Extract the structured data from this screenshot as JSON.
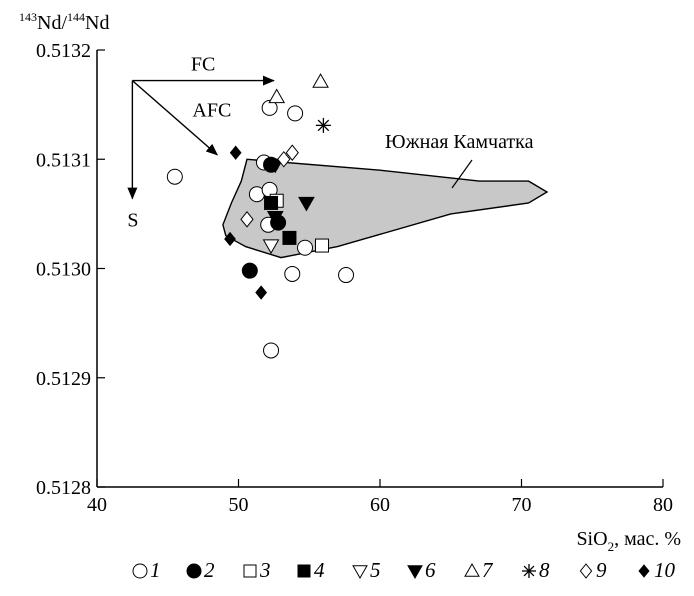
{
  "chart_data": {
    "type": "scatter",
    "ylabel_prefix_a": "143",
    "ylabel_nd_a": "Nd/",
    "ylabel_prefix_b": "144",
    "ylabel_nd_b": "Nd",
    "xlabel_main": "SiO",
    "xlabel_sub": "2",
    "xlabel_unit": ", мас. %",
    "xlim": [
      40,
      80
    ],
    "ylim": [
      0.5128,
      0.5132
    ],
    "x_ticks": [
      "40",
      "50",
      "60",
      "70",
      "80"
    ],
    "x_tick_values": [
      40,
      50,
      60,
      70,
      80
    ],
    "y_ticks": [
      "0.5128",
      "0.5129",
      "0.5130",
      "0.5131",
      "0.5132"
    ],
    "y_tick_values": [
      0.5128,
      0.5129,
      0.513,
      0.5131,
      0.5132
    ],
    "grid": false,
    "legend_position": "bottom",
    "region": {
      "label": "Южная Камчатка",
      "fill": "#c8c8c8",
      "outline": [
        [
          50.6,
          0.5131
        ],
        [
          60.0,
          0.51309
        ],
        [
          67.0,
          0.51308
        ],
        [
          70.5,
          0.51308
        ],
        [
          71.8,
          0.51307
        ],
        [
          70.5,
          0.51306
        ],
        [
          65.0,
          0.51305
        ],
        [
          57.0,
          0.51302
        ],
        [
          53.0,
          0.51301
        ],
        [
          50.5,
          0.51302
        ],
        [
          49.1,
          0.51303
        ],
        [
          48.9,
          0.51304
        ],
        [
          49.5,
          0.51306
        ],
        [
          50.2,
          0.51308
        ]
      ]
    },
    "vectors": [
      {
        "label": "FC",
        "from": [
          42.5,
          0.513172
        ],
        "to": [
          52.5,
          0.513172
        ]
      },
      {
        "label": "S",
        "from": [
          42.5,
          0.513172
        ],
        "to": [
          42.5,
          0.513064
        ]
      },
      {
        "label": "AFC",
        "from": [
          42.5,
          0.513172
        ],
        "to": [
          48.5,
          0.513104
        ]
      }
    ],
    "series": [
      {
        "name": "1",
        "marker": "circle-open",
        "points": [
          [
            45.5,
            0.513084
          ],
          [
            51.3,
            0.513068
          ],
          [
            51.8,
            0.513097
          ],
          [
            52.2,
            0.513072
          ],
          [
            52.1,
            0.51304
          ],
          [
            53.8,
            0.512995
          ],
          [
            54.7,
            0.513019
          ],
          [
            57.6,
            0.512994
          ],
          [
            52.3,
            0.512925
          ],
          [
            52.2,
            0.513147
          ],
          [
            54.0,
            0.513142
          ]
        ]
      },
      {
        "name": "2",
        "marker": "circle-filled",
        "points": [
          [
            50.8,
            0.512998
          ],
          [
            52.8,
            0.513042
          ],
          [
            52.3,
            0.513095
          ]
        ]
      },
      {
        "name": "3",
        "marker": "square-open",
        "points": [
          [
            55.9,
            0.513021
          ],
          [
            52.7,
            0.513062
          ]
        ]
      },
      {
        "name": "4",
        "marker": "square-filled",
        "points": [
          [
            52.3,
            0.51306
          ],
          [
            53.6,
            0.513028
          ]
        ]
      },
      {
        "name": "5",
        "marker": "triangle-down-open",
        "points": [
          [
            52.3,
            0.513021
          ]
        ]
      },
      {
        "name": "6",
        "marker": "triangle-down-filled",
        "points": [
          [
            54.8,
            0.51306
          ],
          [
            52.6,
            0.513047
          ],
          [
            52.6,
            0.513095
          ]
        ]
      },
      {
        "name": "7",
        "marker": "triangle-up-open",
        "points": [
          [
            52.7,
            0.513157
          ],
          [
            55.8,
            0.513171
          ]
        ]
      },
      {
        "name": "8",
        "marker": "asterisk",
        "points": [
          [
            56.0,
            0.513131
          ]
        ]
      },
      {
        "name": "9",
        "marker": "diamond-open",
        "points": [
          [
            50.6,
            0.513045
          ],
          [
            53.2,
            0.5131
          ],
          [
            53.8,
            0.513106
          ]
        ]
      },
      {
        "name": "10",
        "marker": "diamond-filled",
        "points": [
          [
            49.8,
            0.513106
          ],
          [
            49.4,
            0.513027
          ],
          [
            51.6,
            0.512978
          ]
        ]
      }
    ]
  }
}
